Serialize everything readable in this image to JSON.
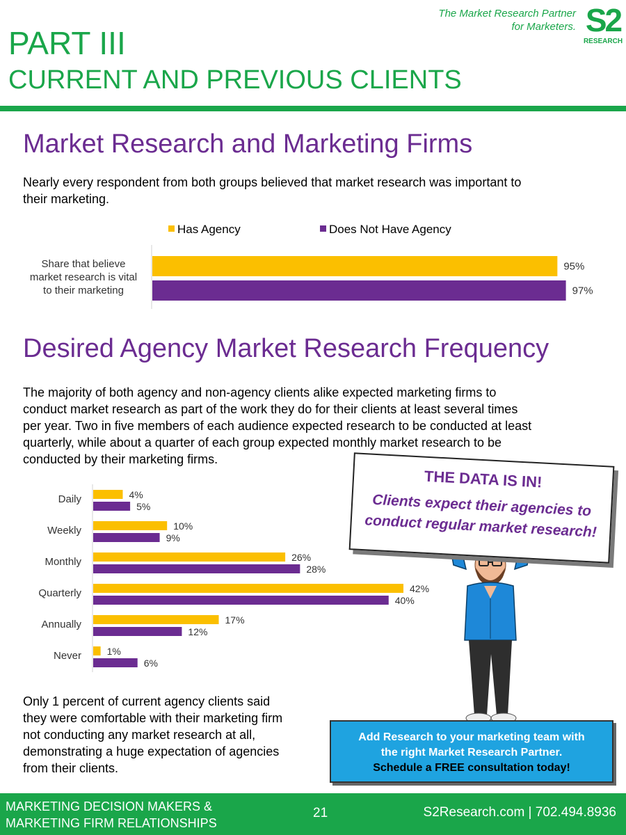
{
  "header": {
    "tagline_line1": "The Market Research Partner",
    "tagline_line2": "for Marketers.",
    "logo_mark": "S2",
    "logo_sub": "RESEARCH",
    "part": "PART III",
    "subtitle": "CURRENT AND PREVIOUS CLIENTS"
  },
  "section1": {
    "heading": "Market Research and Marketing Firms",
    "body_line1": "Nearly every respondent from both groups believed that market research was important to",
    "body_line2": "their marketing."
  },
  "section2": {
    "heading": "Desired Agency Market Research Frequency",
    "body_lines": [
      "The majority of both agency and non-agency clients alike expected marketing firms to",
      "conduct market research as part of the work they do for their clients at least several times",
      "per year. Two in five members of each audience expected research to be conducted at least",
      "quarterly, while about a quarter of each group expected monthly market research to be",
      "conducted by their marketing firms."
    ],
    "note_lines": [
      "Only 1 percent of current agency clients said",
      "they were comfortable with their marketing firm",
      "not conducting any market research at all,",
      "demonstrating a huge expectation of agencies",
      "from their clients."
    ]
  },
  "callout": {
    "line1": "THE DATA IS IN!",
    "line2": "Clients expect their agencies to",
    "line3": "conduct regular market research!"
  },
  "cta": {
    "line1": "Add Research to your marketing team with",
    "line2": "the right Market Research Partner.",
    "line3": "Schedule a FREE consultation today!"
  },
  "footer": {
    "left_line1": "MARKETING DECISION MAKERS &",
    "left_line2": "MARKETING FIRM RELATIONSHIPS",
    "page_number": "21",
    "contact": "S2Research.com | 702.494.8936"
  },
  "colors": {
    "brand_green": "#1aa64a",
    "heading_purple": "#6b2c91",
    "has_agency": "#fbbf00",
    "no_agency": "#6b2c91",
    "cta_blue": "#1fa3e0"
  },
  "chart_data": [
    {
      "type": "bar",
      "orientation": "horizontal",
      "legend": "top",
      "categories": [
        "Share that believe market research is vital to their marketing"
      ],
      "series": [
        {
          "name": "Has Agency",
          "values": [
            95
          ],
          "labels": [
            "95%"
          ]
        },
        {
          "name": "Does Not Have Agency",
          "values": [
            97
          ],
          "labels": [
            "97%"
          ]
        }
      ],
      "xlim": [
        0,
        100
      ]
    },
    {
      "type": "bar",
      "orientation": "horizontal",
      "categories": [
        "Daily",
        "Weekly",
        "Monthly",
        "Quarterly",
        "Annually",
        "Never"
      ],
      "series": [
        {
          "name": "Has Agency",
          "values": [
            4,
            10,
            26,
            42,
            17,
            1
          ],
          "labels": [
            "4%",
            "10%",
            "26%",
            "42%",
            "17%",
            "1%"
          ]
        },
        {
          "name": "Does Not Have Agency",
          "values": [
            5,
            9,
            28,
            40,
            12,
            6
          ],
          "labels": [
            "5%",
            "9%",
            "28%",
            "40%",
            "12%",
            "6%"
          ]
        }
      ],
      "xlim": [
        0,
        42
      ]
    }
  ]
}
